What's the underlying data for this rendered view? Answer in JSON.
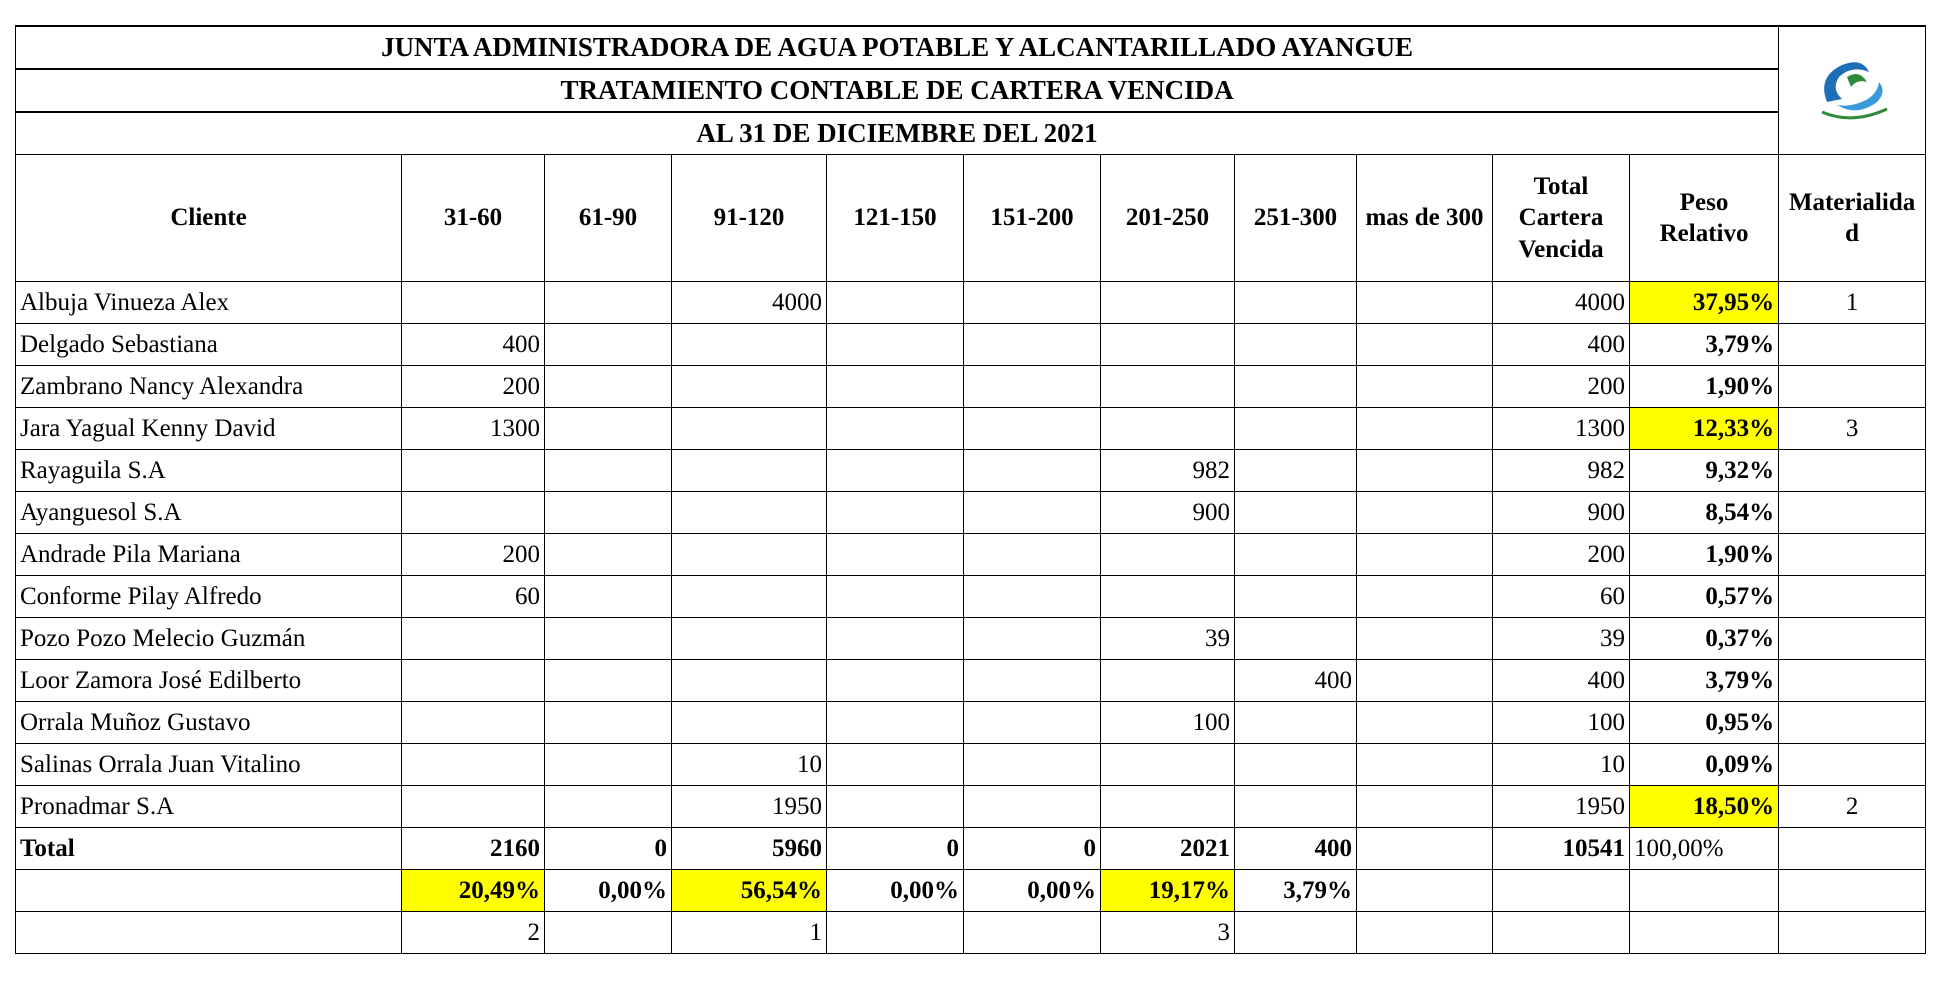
{
  "header": {
    "titles": [
      "JUNTA ADMINISTRADORA DE AGUA POTABLE Y ALCANTARILLADO AYANGUE",
      "TRATAMIENTO CONTABLE DE CARTERA VENCIDA",
      "AL 31 DE DICIEMBRE DEL 2021"
    ]
  },
  "table": {
    "highlight_color": "#ffff00",
    "columns": [
      "Cliente",
      "31-60",
      "61-90",
      "91-120",
      "121-150",
      "151-200",
      "201-250",
      "251-300",
      "mas de 300",
      "Total Cartera Vencida",
      "Peso Relativo",
      "Materialidad"
    ],
    "rows": [
      {
        "cells": [
          "Albuja Vinueza Alex",
          null,
          null,
          4000,
          null,
          null,
          null,
          null,
          null,
          4000,
          {
            "value": "37,95%",
            "highlight": true
          },
          1
        ]
      },
      {
        "cells": [
          "Delgado Sebastiana",
          400,
          null,
          null,
          null,
          null,
          null,
          null,
          null,
          400,
          "3,79%",
          null
        ]
      },
      {
        "cells": [
          "Zambrano Nancy Alexandra",
          200,
          null,
          null,
          null,
          null,
          null,
          null,
          null,
          200,
          "1,90%",
          null
        ]
      },
      {
        "cells": [
          "Jara Yagual Kenny David",
          1300,
          null,
          null,
          null,
          null,
          null,
          null,
          null,
          1300,
          {
            "value": "12,33%",
            "highlight": true
          },
          3
        ]
      },
      {
        "cells": [
          "Rayaguila S.A",
          null,
          null,
          null,
          null,
          null,
          982,
          null,
          null,
          982,
          "9,32%",
          null
        ]
      },
      {
        "cells": [
          "Ayanguesol S.A",
          null,
          null,
          null,
          null,
          null,
          900,
          null,
          null,
          900,
          "8,54%",
          null
        ]
      },
      {
        "cells": [
          "Andrade Pila Mariana",
          200,
          null,
          null,
          null,
          null,
          null,
          null,
          null,
          200,
          "1,90%",
          null
        ]
      },
      {
        "cells": [
          "Conforme Pilay Alfredo",
          60,
          null,
          null,
          null,
          null,
          null,
          null,
          null,
          60,
          "0,57%",
          null
        ]
      },
      {
        "cells": [
          "Pozo Pozo Melecio Guzmán",
          null,
          null,
          null,
          null,
          null,
          39,
          null,
          null,
          39,
          "0,37%",
          null
        ]
      },
      {
        "cells": [
          "Loor Zamora José Edilberto",
          null,
          null,
          null,
          null,
          null,
          null,
          400,
          null,
          400,
          "3,79%",
          null
        ]
      },
      {
        "cells": [
          "Orrala Muñoz Gustavo",
          null,
          null,
          null,
          null,
          null,
          100,
          null,
          null,
          100,
          "0,95%",
          null
        ]
      },
      {
        "cells": [
          "Salinas Orrala Juan Vitalino",
          null,
          null,
          10,
          null,
          null,
          null,
          null,
          null,
          10,
          "0,09%",
          null
        ]
      },
      {
        "cells": [
          "Pronadmar S.A",
          null,
          null,
          1950,
          null,
          null,
          null,
          null,
          null,
          1950,
          {
            "value": "18,50%",
            "highlight": true
          },
          2
        ]
      },
      {
        "cells": [
          "Total",
          2160,
          0,
          5960,
          0,
          0,
          2021,
          400,
          null,
          10541,
          "100,00%",
          null
        ]
      },
      {
        "cells": [
          null,
          {
            "value": "20,49%",
            "highlight": true
          },
          "0,00%",
          {
            "value": "56,54%",
            "highlight": true
          },
          "0,00%",
          "0,00%",
          {
            "value": "19,17%",
            "highlight": true
          },
          "3,79%",
          null,
          null,
          null,
          null
        ]
      },
      {
        "cells": [
          null,
          2,
          null,
          1,
          null,
          null,
          3,
          null,
          null,
          null,
          null,
          null
        ]
      }
    ]
  }
}
